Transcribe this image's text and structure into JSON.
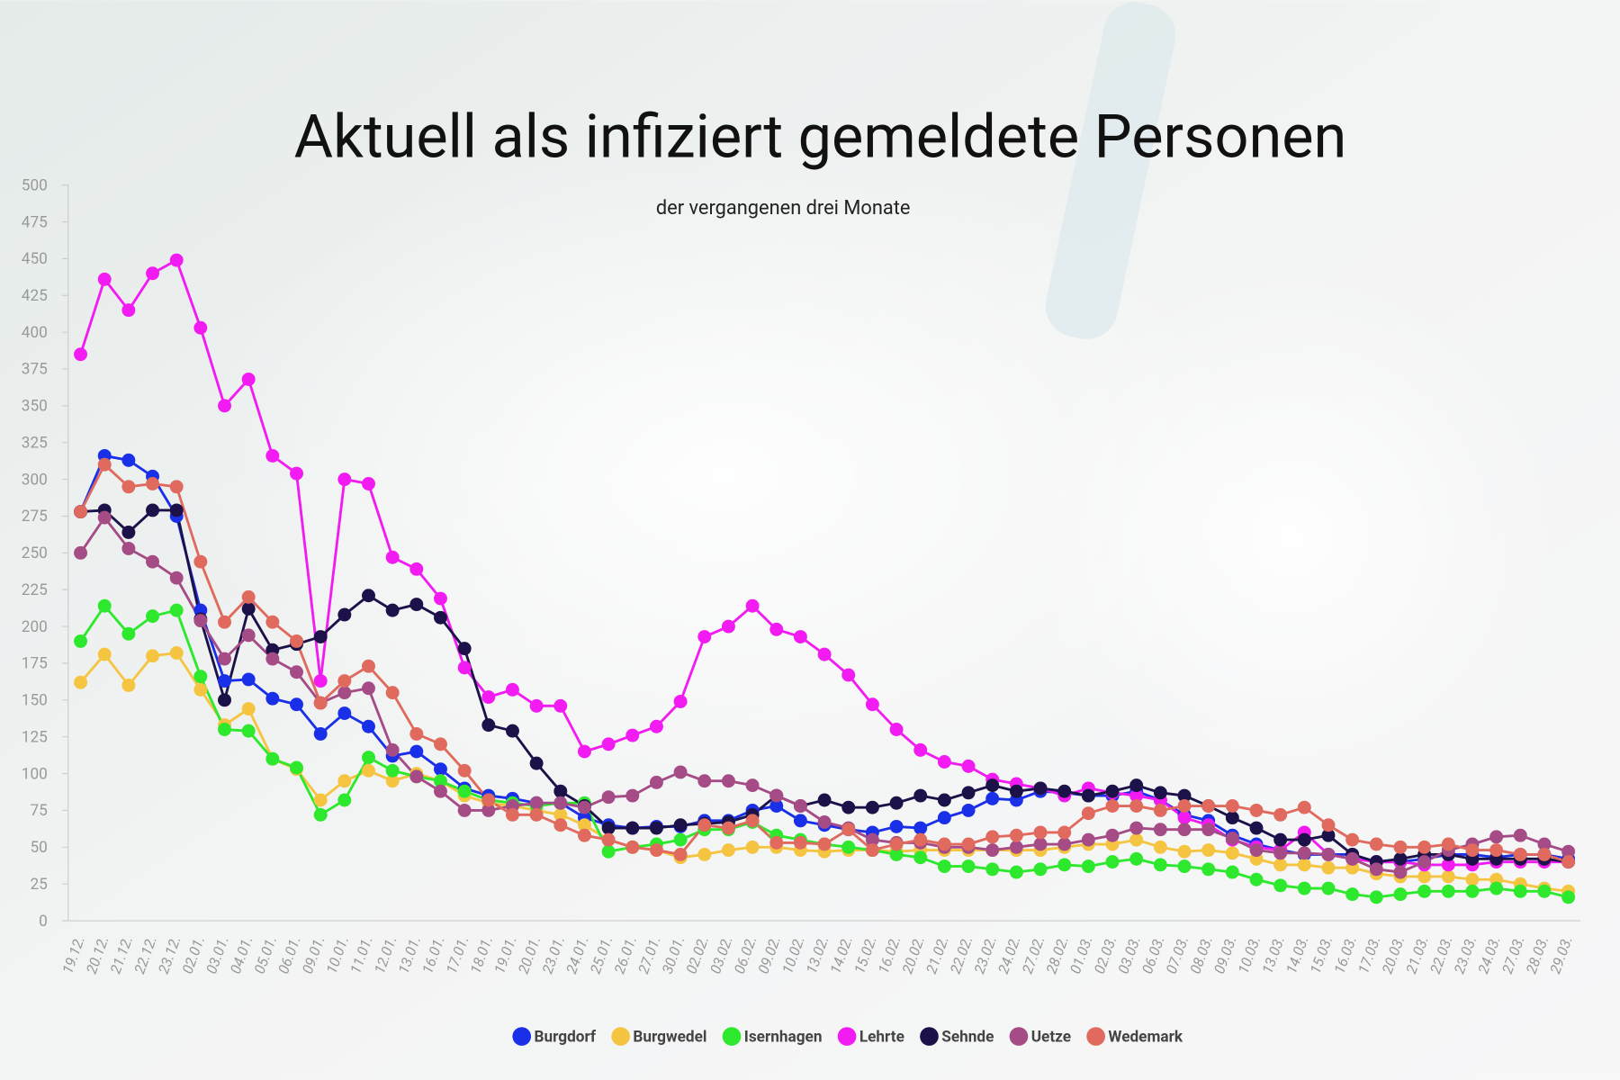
{
  "chart_data": {
    "type": "line",
    "title": "Aktuell als infiziert gemeldete Personen",
    "subtitle": "der vergangenen drei Monate",
    "categories": [
      "19.12.",
      "20.12.",
      "21.12.",
      "22.12.",
      "23.12.",
      "02.01.",
      "03.01.",
      "04.01.",
      "05.01.",
      "06.01.",
      "09.01.",
      "10.01.",
      "11.01.",
      "12.01.",
      "13.01.",
      "16.01.",
      "17.01.",
      "18.01.",
      "19.01.",
      "20.01.",
      "23.01.",
      "24.01.",
      "25.01.",
      "26.01.",
      "27.01.",
      "30.01.",
      "02.02.",
      "03.02.",
      "06.02.",
      "09.02.",
      "10.02.",
      "13.02.",
      "14.02.",
      "15.02.",
      "16.02.",
      "20.02.",
      "21.02.",
      "22.02.",
      "23.02.",
      "24.02.",
      "27.02.",
      "28.02.",
      "01.03.",
      "02.03.",
      "03.03.",
      "06.03.",
      "07.03.",
      "08.03.",
      "09.03.",
      "10.03.",
      "13.03.",
      "14.03.",
      "15.03.",
      "16.03.",
      "17.03.",
      "20.03.",
      "21.03.",
      "22.03.",
      "23.03.",
      "24.03.",
      "27.03.",
      "28.03.",
      "29.03."
    ],
    "series": [
      {
        "name": "Burgdorf",
        "color": "#1a2fe8",
        "values": [
          278,
          316,
          313,
          302,
          275,
          211,
          163,
          164,
          151,
          147,
          127,
          141,
          132,
          112,
          115,
          103,
          90,
          85,
          83,
          80,
          80,
          70,
          65,
          63,
          64,
          64,
          68,
          68,
          75,
          78,
          68,
          65,
          62,
          60,
          64,
          63,
          70,
          75,
          83,
          82,
          88,
          87,
          85,
          85,
          88,
          82,
          72,
          68,
          58,
          52,
          48,
          45,
          45,
          45,
          40,
          40,
          42,
          45,
          45,
          43,
          45,
          45,
          42
        ]
      },
      {
        "name": "Burgwedel",
        "color": "#f5c542",
        "values": [
          162,
          181,
          160,
          180,
          182,
          157,
          133,
          144,
          110,
          103,
          82,
          95,
          102,
          95,
          100,
          95,
          85,
          80,
          78,
          75,
          72,
          65,
          55,
          50,
          48,
          43,
          45,
          48,
          50,
          50,
          48,
          47,
          48,
          48,
          47,
          48,
          48,
          48,
          48,
          48,
          48,
          50,
          52,
          52,
          55,
          50,
          47,
          48,
          46,
          42,
          38,
          38,
          36,
          36,
          32,
          30,
          30,
          30,
          28,
          28,
          25,
          22,
          20
        ]
      },
      {
        "name": "Isernhagen",
        "color": "#2de82d",
        "values": [
          190,
          214,
          195,
          207,
          211,
          166,
          130,
          129,
          110,
          104,
          72,
          82,
          111,
          102,
          98,
          95,
          88,
          82,
          80,
          78,
          80,
          80,
          47,
          50,
          52,
          55,
          62,
          62,
          67,
          58,
          55,
          52,
          50,
          48,
          45,
          43,
          37,
          37,
          35,
          33,
          35,
          38,
          37,
          40,
          42,
          38,
          37,
          35,
          33,
          28,
          24,
          22,
          22,
          18,
          16,
          18,
          20,
          20,
          20,
          22,
          20,
          20,
          16
        ]
      },
      {
        "name": "Lehrte",
        "color": "#f21cf2",
        "values": [
          385,
          436,
          415,
          440,
          449,
          403,
          350,
          368,
          316,
          304,
          163,
          300,
          297,
          247,
          239,
          219,
          172,
          152,
          157,
          146,
          146,
          115,
          120,
          126,
          132,
          149,
          193,
          200,
          214,
          198,
          193,
          181,
          167,
          147,
          130,
          116,
          108,
          105,
          96,
          93,
          90,
          85,
          90,
          87,
          85,
          82,
          70,
          65,
          55,
          50,
          48,
          60,
          45,
          42,
          40,
          40,
          38,
          38,
          38,
          40,
          40,
          40,
          40
        ]
      },
      {
        "name": "Sehnde",
        "color": "#1c1148",
        "values": [
          278,
          279,
          264,
          279,
          279,
          205,
          150,
          212,
          184,
          188,
          193,
          208,
          221,
          211,
          215,
          206,
          185,
          133,
          129,
          107,
          88,
          78,
          63,
          63,
          63,
          65,
          66,
          67,
          72,
          85,
          78,
          82,
          77,
          77,
          80,
          85,
          82,
          87,
          92,
          88,
          90,
          88,
          85,
          88,
          92,
          87,
          85,
          78,
          70,
          63,
          55,
          55,
          58,
          45,
          40,
          42,
          45,
          45,
          42,
          42,
          42,
          42,
          40
        ]
      },
      {
        "name": "Uetze",
        "color": "#a54c86",
        "values": [
          250,
          274,
          253,
          244,
          233,
          204,
          178,
          194,
          178,
          169,
          148,
          155,
          158,
          116,
          98,
          88,
          75,
          75,
          78,
          80,
          80,
          77,
          84,
          85,
          94,
          101,
          95,
          95,
          92,
          85,
          78,
          67,
          63,
          55,
          53,
          53,
          50,
          50,
          48,
          50,
          52,
          52,
          55,
          58,
          63,
          62,
          62,
          62,
          56,
          48,
          46,
          46,
          45,
          42,
          35,
          33,
          40,
          48,
          52,
          57,
          58,
          52,
          47
        ]
      },
      {
        "name": "Wedemark",
        "color": "#e06a5e",
        "values": [
          278,
          310,
          295,
          297,
          295,
          244,
          203,
          220,
          203,
          190,
          148,
          163,
          173,
          155,
          127,
          120,
          102,
          82,
          72,
          72,
          65,
          58,
          55,
          50,
          48,
          45,
          65,
          63,
          68,
          53,
          53,
          52,
          62,
          48,
          52,
          55,
          52,
          52,
          57,
          58,
          60,
          60,
          73,
          78,
          78,
          75,
          78,
          78,
          78,
          75,
          72,
          77,
          65,
          55,
          52,
          50,
          50,
          52,
          48,
          48,
          45,
          45,
          40
        ]
      }
    ],
    "ylim": [
      0,
      500
    ],
    "yticks": [
      0,
      25,
      50,
      75,
      100,
      125,
      150,
      175,
      200,
      225,
      250,
      275,
      300,
      325,
      350,
      375,
      400,
      425,
      450,
      475,
      500
    ],
    "grid": false
  }
}
